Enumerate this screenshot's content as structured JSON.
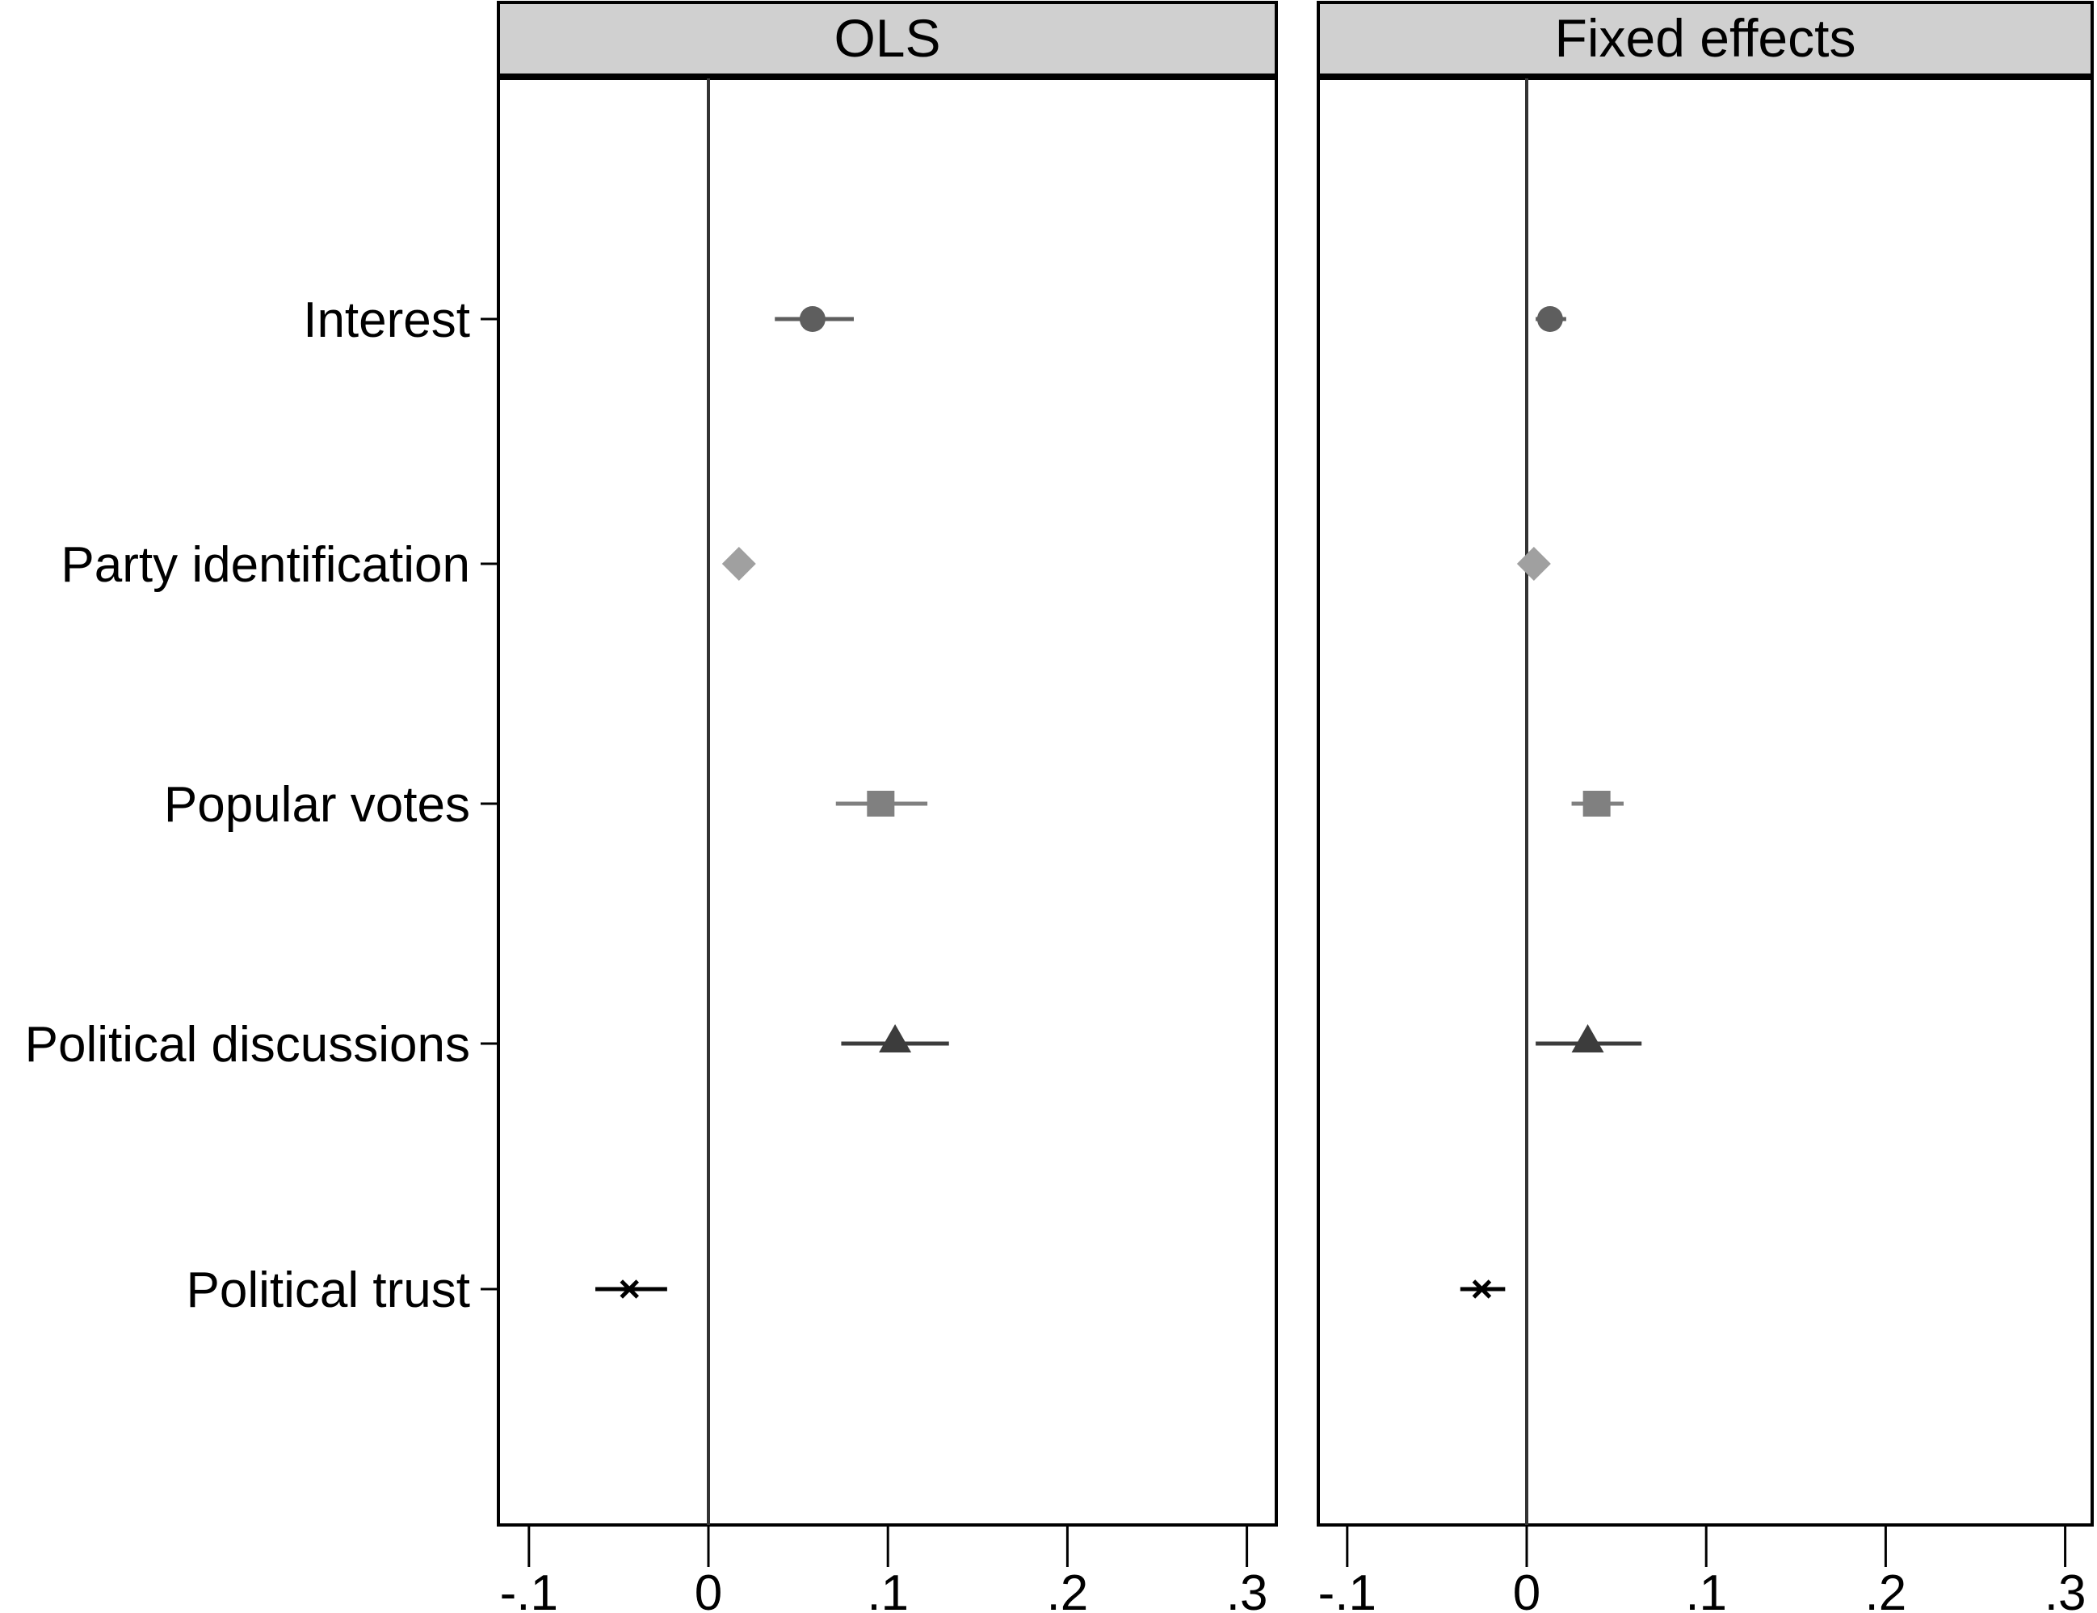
{
  "chart_data": {
    "type": "scatter",
    "subtype": "coefficient-plot",
    "categories": [
      "Interest",
      "Party identification",
      "Popular votes",
      "Political discussions",
      "Political trust"
    ],
    "xticks": [
      "-.1",
      "0",
      ".1",
      ".2",
      ".3"
    ],
    "xtick_values": [
      -0.1,
      0,
      0.1,
      0.2,
      0.3
    ],
    "xlim": [
      -0.117,
      0.305
    ],
    "reference_line": 0,
    "panels": [
      {
        "title": "OLS",
        "points": [
          {
            "label": "Interest",
            "estimate": 0.058,
            "ci_low": 0.037,
            "ci_high": 0.081,
            "marker": "circle",
            "color": "#5e5e5e"
          },
          {
            "label": "Party identification",
            "estimate": 0.017,
            "ci_low": 0.015,
            "ci_high": 0.019,
            "marker": "diamond",
            "color": "#a0a0a0"
          },
          {
            "label": "Popular votes",
            "estimate": 0.096,
            "ci_low": 0.071,
            "ci_high": 0.122,
            "marker": "square",
            "color": "#808080"
          },
          {
            "label": "Political discussions",
            "estimate": 0.104,
            "ci_low": 0.074,
            "ci_high": 0.134,
            "marker": "triangle",
            "color": "#3c3c3c"
          },
          {
            "label": "Political trust",
            "estimate": -0.044,
            "ci_low": -0.063,
            "ci_high": -0.023,
            "marker": "x",
            "color": "#000000"
          }
        ]
      },
      {
        "title": "Fixed effects",
        "points": [
          {
            "label": "Interest",
            "estimate": 0.013,
            "ci_low": 0.005,
            "ci_high": 0.022,
            "marker": "circle",
            "color": "#5e5e5e"
          },
          {
            "label": "Party identification",
            "estimate": 0.004,
            "ci_low": 0.003,
            "ci_high": 0.005,
            "marker": "diamond",
            "color": "#a0a0a0"
          },
          {
            "label": "Popular votes",
            "estimate": 0.039,
            "ci_low": 0.025,
            "ci_high": 0.054,
            "marker": "square",
            "color": "#808080"
          },
          {
            "label": "Political discussions",
            "estimate": 0.034,
            "ci_low": 0.005,
            "ci_high": 0.064,
            "marker": "triangle",
            "color": "#3c3c3c"
          },
          {
            "label": "Political trust",
            "estimate": -0.025,
            "ci_low": -0.037,
            "ci_high": -0.012,
            "marker": "x",
            "color": "#000000"
          }
        ]
      }
    ],
    "title": "",
    "xlabel": "",
    "ylabel": "",
    "grid": false,
    "legend": null
  }
}
